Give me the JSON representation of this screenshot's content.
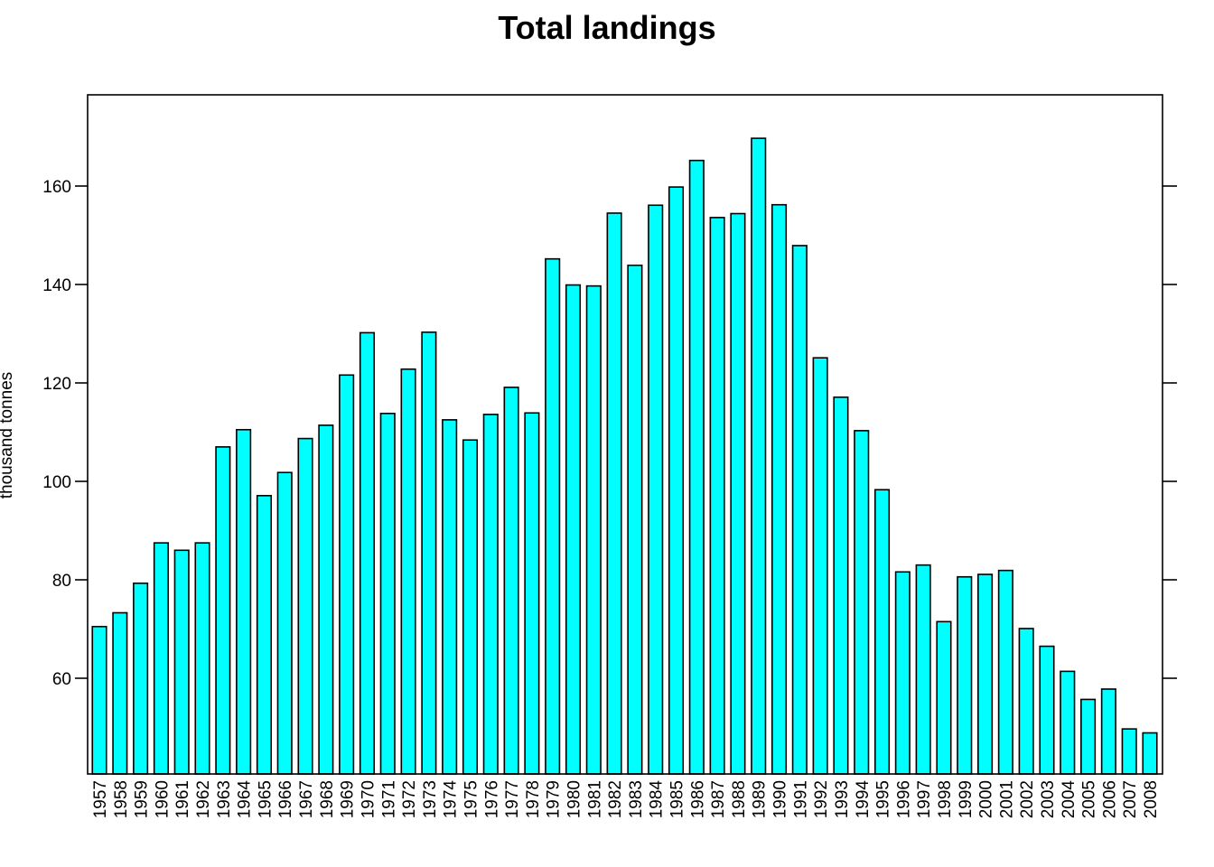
{
  "chart_data": {
    "type": "bar",
    "title": "Total landings",
    "xlabel": "",
    "ylabel": "thousand tonnes",
    "categories": [
      "1957",
      "1958",
      "1959",
      "1960",
      "1961",
      "1962",
      "1963",
      "1964",
      "1965",
      "1966",
      "1967",
      "1968",
      "1969",
      "1970",
      "1971",
      "1972",
      "1973",
      "1974",
      "1975",
      "1976",
      "1977",
      "1978",
      "1979",
      "1980",
      "1981",
      "1982",
      "1983",
      "1984",
      "1985",
      "1986",
      "1987",
      "1988",
      "1989",
      "1990",
      "1991",
      "1992",
      "1993",
      "1994",
      "1995",
      "1996",
      "1997",
      "1998",
      "1999",
      "2000",
      "2001",
      "2002",
      "2003",
      "2004",
      "2005",
      "2006",
      "2007",
      "2008"
    ],
    "values": [
      70.5,
      73.3,
      79.3,
      87.5,
      86.0,
      87.5,
      107.0,
      110.5,
      97.1,
      101.8,
      108.7,
      111.4,
      121.6,
      130.2,
      113.8,
      122.8,
      130.3,
      112.5,
      108.4,
      113.6,
      119.1,
      113.9,
      145.2,
      139.9,
      139.7,
      154.5,
      143.9,
      156.1,
      159.8,
      165.2,
      153.6,
      154.4,
      169.7,
      156.2,
      147.9,
      125.1,
      117.1,
      110.3,
      98.3,
      81.6,
      83.0,
      71.5,
      80.6,
      81.1,
      81.9,
      70.1,
      66.5,
      61.4,
      55.7,
      57.8,
      49.7,
      48.9
    ],
    "ylim": [
      40,
      178
    ],
    "yticks": [
      60,
      80,
      100,
      120,
      140,
      160
    ],
    "bar_color": "#00FFFF",
    "grid": false,
    "legend": "none"
  }
}
